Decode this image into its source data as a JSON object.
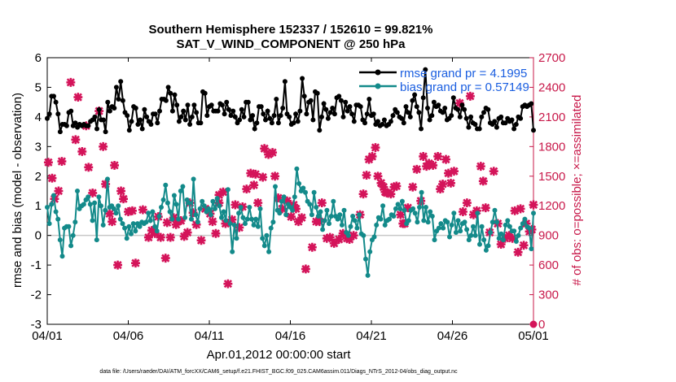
{
  "chart_data": {
    "type": "line",
    "title": "Southern Hemisphere 152337 / 152610 = 99.821%",
    "subtitle": "SAT_V_WIND_COMPONENT @ 250 hPa",
    "xlabel": "Apr.01,2012 00:00:00 start",
    "ylabel": "rmse and bias (model - observation)",
    "y2label": "# of obs: o=possible; ×=assimilated",
    "xlim": [
      0,
      30
    ],
    "ylim": [
      -3,
      6
    ],
    "y2lim": [
      0,
      2700
    ],
    "x_ticks": [
      {
        "value": 0,
        "label": "04/01"
      },
      {
        "value": 5,
        "label": "04/06"
      },
      {
        "value": 10,
        "label": "04/11"
      },
      {
        "value": 15,
        "label": "04/16"
      },
      {
        "value": 20,
        "label": "04/21"
      },
      {
        "value": 25,
        "label": "04/26"
      },
      {
        "value": 30,
        "label": "05/01"
      }
    ],
    "y_ticks": [
      -3,
      -2,
      -1,
      0,
      1,
      2,
      3,
      4,
      5,
      6
    ],
    "y2_ticks": [
      0,
      300,
      600,
      900,
      1200,
      1500,
      1800,
      2100,
      2400,
      2700
    ],
    "legend_position": "top-right",
    "colors": {
      "rmse": "#000000",
      "bias": "#138a8a",
      "obs": "#d4145a",
      "zero": "#c8c8c8",
      "right_axis": "#c8194a"
    },
    "series": [
      {
        "name": "rmse",
        "legend": "rmse grand pr = 4.1995",
        "color": "#000000",
        "y": [
          3.95,
          4.1,
          4.7,
          4.7,
          4.5,
          4.1,
          3.5,
          3.75,
          3.75,
          3.7,
          4.15,
          4.2,
          3.7,
          3.8,
          3.65,
          3.75,
          3.7,
          3.75,
          3.7,
          3.7,
          3.85,
          3.9,
          4.0,
          3.6,
          4.25,
          3.9,
          3.9,
          3.5,
          4.5,
          4.2,
          4.35,
          4.3,
          5.0,
          4.6,
          5.2,
          4.55,
          4.15,
          4.05,
          3.55,
          3.85,
          4.35,
          4.3,
          3.75,
          3.9,
          3.6,
          4.25,
          4.0,
          3.85,
          3.75,
          4.1,
          4.1,
          3.8,
          4.2,
          4.6,
          4.6,
          4.55,
          5.0,
          4.8,
          4.2,
          4.75,
          4.4,
          3.85,
          4.0,
          4.2,
          3.9,
          4.4,
          3.75,
          4.0,
          4.4,
          4.15,
          3.8,
          3.8,
          4.85,
          4.8,
          4.05,
          4.35,
          4.4,
          4.2,
          4.2,
          4.2,
          4.45,
          4.4,
          4.1,
          4.5,
          4.25,
          4.05,
          4.2,
          4.0,
          3.8,
          3.9,
          4.25,
          4.0,
          4.5,
          4.5,
          3.9,
          4.05,
          3.6,
          3.8,
          4.35,
          4.35,
          4.1,
          3.9,
          4.2,
          3.95,
          3.8,
          4.05,
          4.6,
          3.8,
          4.05,
          4.3,
          5.2,
          4.1,
          4.0,
          3.75,
          3.8,
          4.1,
          3.85,
          4.2,
          5.3,
          4.7,
          4.1,
          4.5,
          4.55,
          3.9,
          4.85,
          4.8,
          3.55,
          4.0,
          4.45,
          4.25,
          3.95,
          4.15,
          4.3,
          4.1,
          4.65,
          4.7,
          4.55,
          4.0,
          4.5,
          4.2,
          4.35,
          4.1,
          3.85,
          4.4,
          4.4,
          4.35,
          3.9,
          3.8,
          4.1,
          4.6,
          4.05,
          4.1,
          3.75,
          3.85,
          3.7,
          3.75,
          3.9,
          3.7,
          3.75,
          3.85,
          4.05,
          4.25,
          4.15,
          4.0,
          3.95,
          3.8,
          4.35,
          4.15,
          4.0,
          4.55,
          4.75,
          4.35,
          4.15,
          3.6,
          4.65,
          5.6,
          4.3,
          3.9,
          4.05,
          4.5,
          4.35,
          4.4,
          4.2,
          4.15,
          4.3,
          3.9,
          3.95,
          4.05,
          4.65,
          4.3,
          4.25,
          4.0,
          4.4,
          4.25,
          3.95,
          3.65,
          4.0,
          3.8,
          3.75,
          3.6,
          3.6,
          4.0,
          4.15,
          4.3,
          4.25,
          3.8,
          3.75,
          3.85,
          3.65,
          3.95,
          4.0,
          3.8,
          3.8,
          3.95,
          3.85,
          3.9,
          3.6,
          3.75,
          4.0,
          3.95,
          4.35,
          4.4,
          4.35,
          4.4,
          4.45,
          3.55
        ]
      },
      {
        "name": "bias",
        "legend": "bias grand pr = 0.57149",
        "color": "#138a8a",
        "y": [
          0.95,
          0.4,
          1.05,
          1.35,
          0.8,
          0.55,
          -0.15,
          -0.7,
          0.25,
          0.3,
          0.3,
          -0.35,
          0.0,
          0.45,
          1.5,
          0.9,
          1.0,
          1.05,
          1.2,
          1.3,
          1.05,
          0.5,
          1.1,
          -0.15,
          1.3,
          1.0,
          0.35,
          0.85,
          1.9,
          0.95,
          1.0,
          0.9,
          0.75,
          1.0,
          0.55,
          0.4,
          0.25,
          -0.1,
          0.3,
          0.05,
          0.4,
          0.15,
          0.4,
          0.3,
          0.45,
          0.4,
          0.45,
          0.75,
          0.5,
          0.8,
          0.3,
          0.15,
          0.65,
          0.95,
          1.2,
          1.7,
          1.1,
          0.8,
          0.55,
          1.35,
          1.05,
          0.55,
          1.5,
          1.65,
          0.6,
          1.2,
          1.1,
          0.55,
          1.9,
          0.7,
          0.45,
          0.9,
          1.15,
          1.0,
          0.8,
          0.9,
          0.7,
          1.15,
          0.9,
          1.25,
          1.0,
          0.6,
          0.8,
          0.5,
          1.55,
          0.4,
          -0.55,
          0.35,
          -0.1,
          0.75,
          0.95,
          0.6,
          0.4,
          0.55,
          0.95,
          0.55,
          0.35,
          0.55,
          0.3,
          0.9,
          -0.1,
          -0.35,
          0.0,
          -0.55,
          0.25,
          0.45,
          1.65,
          0.85,
          0.75,
          1.15,
          1.3,
          0.7,
          1.05,
          0.95,
          0.85,
          1.3,
          2.25,
          1.75,
          1.5,
          1.6,
          1.45,
          1.15,
          1.05,
          0.7,
          1.45,
          0.95,
          0.65,
          0.8,
          0.2,
          0.5,
          0.85,
          0.4,
          0.65,
          1.15,
          0.65,
          0.55,
          0.7,
          0.35,
          0.85,
          0.1,
          0.0,
          0.3,
          0.65,
          0.5,
          0.25,
          0.7,
          0.05,
          0.0,
          -0.8,
          -1.35,
          -0.55,
          -0.15,
          -0.05,
          0.35,
          0.6,
          0.55,
          1.0,
          0.35,
          0.5,
          0.55,
          0.7,
          0.65,
          0.9,
          1.05,
          0.9,
          1.15,
          0.85,
          0.4,
          0.5,
          0.85,
          0.9,
          0.75,
          0.45,
          0.95,
          1.45,
          0.5,
          0.95,
          0.45,
          0.8,
          0.65,
          -0.15,
          0.15,
          0.25,
          0.4,
          0.25,
          0.5,
          0.45,
          -0.05,
          0.35,
          0.75,
          0.1,
          0.5,
          0.15,
          0.4,
          0.45,
          0.2,
          -0.15,
          0.0,
          0.3,
          0.0,
          0.75,
          -0.3,
          0.3,
          -0.15,
          -0.5,
          -0.35,
          0.1,
          0.45,
          0.85,
          0.45,
          -0.1,
          0.05,
          -0.15,
          0.35,
          0.5,
          0.3,
          0.15,
          0.15,
          -0.2,
          0.0,
          0.25,
          0.4,
          0.55,
          0.3,
          0.25,
          -0.45,
          0.75
        ]
      },
      {
        "name": "obs_assimilated",
        "color": "#d4145a",
        "points": [
          [
            0.07,
            1640
          ],
          [
            0.3,
            1480
          ],
          [
            0.45,
            1270
          ],
          [
            0.7,
            1350
          ],
          [
            0.9,
            1650
          ],
          [
            1.45,
            2450
          ],
          [
            1.9,
            2300
          ],
          [
            1.75,
            1870
          ],
          [
            2.15,
            1750
          ],
          [
            2.4,
            2010
          ],
          [
            2.55,
            1590
          ],
          [
            2.8,
            1330
          ],
          [
            3.2,
            2160
          ],
          [
            3.45,
            1800
          ],
          [
            3.6,
            1420
          ],
          [
            3.85,
            1120
          ],
          [
            4.0,
            1040
          ],
          [
            4.15,
            1610
          ],
          [
            4.35,
            600
          ],
          [
            4.55,
            1350
          ],
          [
            4.7,
            1270
          ],
          [
            5.0,
            1140
          ],
          [
            5.25,
            1150
          ],
          [
            5.45,
            620
          ],
          [
            5.9,
            1160
          ],
          [
            6.25,
            880
          ],
          [
            6.45,
            950
          ],
          [
            6.65,
            920
          ],
          [
            6.85,
            1090
          ],
          [
            7.0,
            880
          ],
          [
            7.3,
            670
          ],
          [
            7.4,
            1030
          ],
          [
            7.6,
            880
          ],
          [
            7.8,
            1080
          ],
          [
            7.95,
            1010
          ],
          [
            8.1,
            1050
          ],
          [
            8.25,
            1050
          ],
          [
            8.45,
            890
          ],
          [
            8.65,
            930
          ],
          [
            8.8,
            1230
          ],
          [
            9.0,
            1130
          ],
          [
            9.2,
            1010
          ],
          [
            9.5,
            850
          ],
          [
            9.75,
            1170
          ],
          [
            10.05,
            1120
          ],
          [
            10.2,
            1040
          ],
          [
            10.4,
            920
          ],
          [
            10.6,
            1230
          ],
          [
            10.85,
            1340
          ],
          [
            10.6,
            1310
          ],
          [
            11.0,
            1020
          ],
          [
            11.15,
            410
          ],
          [
            11.4,
            1060
          ],
          [
            11.6,
            1210
          ],
          [
            11.85,
            980
          ],
          [
            12.05,
            1190
          ],
          [
            12.3,
            1370
          ],
          [
            12.55,
            1530
          ],
          [
            12.75,
            1410
          ],
          [
            12.85,
            1520
          ],
          [
            13.0,
            1230
          ],
          [
            13.3,
            1490
          ],
          [
            13.4,
            1780
          ],
          [
            13.65,
            1720
          ],
          [
            13.9,
            1740
          ],
          [
            14.05,
            1500
          ],
          [
            14.25,
            1280
          ],
          [
            14.5,
            1170
          ],
          [
            14.8,
            1250
          ],
          [
            15.05,
            1090
          ],
          [
            15.2,
            1210
          ],
          [
            15.35,
            1170
          ],
          [
            15.5,
            1040
          ],
          [
            15.7,
            1080
          ],
          [
            15.95,
            560
          ],
          [
            16.35,
            780
          ],
          [
            16.6,
            1040
          ],
          [
            16.8,
            1040
          ],
          [
            16.95,
            1230
          ],
          [
            17.25,
            870
          ],
          [
            17.45,
            880
          ],
          [
            17.7,
            820
          ],
          [
            18.0,
            860
          ],
          [
            18.25,
            920
          ],
          [
            18.5,
            870
          ],
          [
            18.65,
            860
          ],
          [
            18.9,
            900
          ],
          [
            19.3,
            1110
          ],
          [
            19.5,
            1320
          ],
          [
            19.7,
            1510
          ],
          [
            19.85,
            1670
          ],
          [
            20.05,
            1700
          ],
          [
            20.25,
            1790
          ],
          [
            20.4,
            1500
          ],
          [
            20.6,
            1430
          ],
          [
            20.75,
            1390
          ],
          [
            20.85,
            1340
          ],
          [
            20.95,
            1330
          ],
          [
            21.2,
            1320
          ],
          [
            21.4,
            1390
          ],
          [
            21.55,
            1400
          ],
          [
            21.8,
            1110
          ],
          [
            21.95,
            1020
          ],
          [
            22.05,
            1020
          ],
          [
            22.25,
            1180
          ],
          [
            22.55,
            1390
          ],
          [
            22.8,
            1570
          ],
          [
            23.05,
            1250
          ],
          [
            23.2,
            1700
          ],
          [
            23.4,
            1600
          ],
          [
            23.55,
            1630
          ],
          [
            23.8,
            1610
          ],
          [
            24.1,
            1700
          ],
          [
            24.25,
            1370
          ],
          [
            24.4,
            1420
          ],
          [
            24.6,
            1670
          ],
          [
            24.75,
            1530
          ],
          [
            24.9,
            1430
          ],
          [
            25.1,
            1550
          ],
          [
            25.45,
            2240
          ],
          [
            25.65,
            1140
          ],
          [
            25.9,
            1230
          ],
          [
            26.1,
            2310
          ],
          [
            26.3,
            1110
          ],
          [
            26.5,
            1150
          ],
          [
            26.75,
            1600
          ],
          [
            26.9,
            1450
          ],
          [
            27.05,
            1180
          ],
          [
            27.3,
            930
          ],
          [
            27.55,
            1550
          ],
          [
            27.8,
            1020
          ],
          [
            28.0,
            810
          ],
          [
            28.25,
            870
          ],
          [
            28.5,
            900
          ],
          [
            28.7,
            870
          ],
          [
            28.85,
            1150
          ],
          [
            29.05,
            730
          ],
          [
            29.2,
            1170
          ],
          [
            29.4,
            800
          ],
          [
            29.55,
            1020
          ],
          [
            29.75,
            940
          ],
          [
            29.9,
            960
          ],
          [
            30.0,
            1210
          ]
        ]
      },
      {
        "name": "obs_possible",
        "color": "#d4145a",
        "points": [
          [
            30.0,
            0
          ]
        ]
      }
    ],
    "footnote": "data file: /Users/raeder/DAI/ATM_forcXX/CAM6_setup/f.e21.FHIST_BGC.f09_025.CAM6assim.011/Diags_NTrS_2012-04/obs_diag_output.nc"
  }
}
